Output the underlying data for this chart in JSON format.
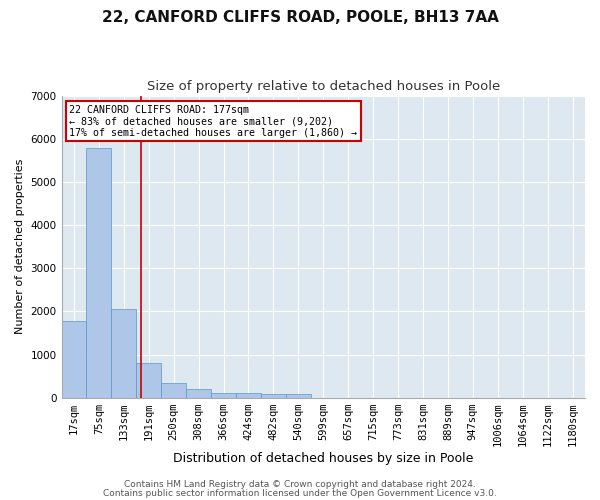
{
  "title1": "22, CANFORD CLIFFS ROAD, POOLE, BH13 7AA",
  "title2": "Size of property relative to detached houses in Poole",
  "xlabel": "Distribution of detached houses by size in Poole",
  "ylabel": "Number of detached properties",
  "bin_labels": [
    "17sqm",
    "75sqm",
    "133sqm",
    "191sqm",
    "250sqm",
    "308sqm",
    "366sqm",
    "424sqm",
    "482sqm",
    "540sqm",
    "599sqm",
    "657sqm",
    "715sqm",
    "773sqm",
    "831sqm",
    "889sqm",
    "947sqm",
    "1006sqm",
    "1064sqm",
    "1122sqm",
    "1180sqm"
  ],
  "bar_values": [
    1780,
    5780,
    2060,
    800,
    340,
    200,
    120,
    105,
    90,
    80,
    0,
    0,
    0,
    0,
    0,
    0,
    0,
    0,
    0,
    0,
    0
  ],
  "bar_color": "#aec6e8",
  "bar_edgecolor": "#5a96c8",
  "vline_bin_index": 2.68,
  "annotation_text": "22 CANFORD CLIFFS ROAD: 177sqm\n← 83% of detached houses are smaller (9,202)\n17% of semi-detached houses are larger (1,860) →",
  "annotation_box_color": "#ffffff",
  "annotation_box_edgecolor": "#cc0000",
  "vline_color": "#cc0000",
  "ylim": [
    0,
    7000
  ],
  "yticks": [
    0,
    1000,
    2000,
    3000,
    4000,
    5000,
    6000,
    7000
  ],
  "background_color": "#dde8f0",
  "footer1": "Contains HM Land Registry data © Crown copyright and database right 2024.",
  "footer2": "Contains public sector information licensed under the Open Government Licence v3.0.",
  "title1_fontsize": 11,
  "title2_fontsize": 9.5,
  "xlabel_fontsize": 9,
  "ylabel_fontsize": 8,
  "tick_fontsize": 7.5,
  "footer_fontsize": 6.5
}
